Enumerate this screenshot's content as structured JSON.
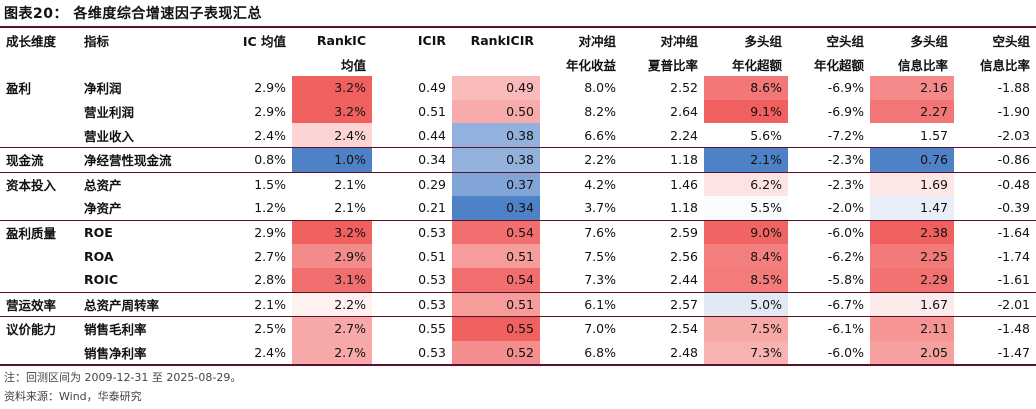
{
  "title": "图表20： 各维度综合增速因子表现汇总",
  "headers": [
    [
      "成长维度",
      ""
    ],
    [
      "指标",
      ""
    ],
    [
      "IC 均值",
      ""
    ],
    [
      "RankIC",
      "均值"
    ],
    [
      "ICIR",
      ""
    ],
    [
      "RankICIR",
      ""
    ],
    [
      "对冲组",
      "年化收益"
    ],
    [
      "对冲组",
      "夏普比率"
    ],
    [
      "多头组",
      "年化超额"
    ],
    [
      "空头组",
      "年化超额"
    ],
    [
      "多头组",
      "信息比率"
    ],
    [
      "空头组",
      "信息比率"
    ]
  ],
  "rows": [
    {
      "group": "盈利",
      "metric": "净利润",
      "ic": "2.9%",
      "rankic": "3.2%",
      "icir": "0.49",
      "rankicir": "0.49",
      "hedge_ret": "8.0%",
      "hedge_sharpe": "2.52",
      "long_excess": "8.6%",
      "short_excess": "-6.9%",
      "long_ir": "2.16",
      "short_ir": "-1.88"
    },
    {
      "group": "",
      "metric": "营业利润",
      "ic": "2.9%",
      "rankic": "3.2%",
      "icir": "0.51",
      "rankicir": "0.50",
      "hedge_ret": "8.2%",
      "hedge_sharpe": "2.64",
      "long_excess": "9.1%",
      "short_excess": "-6.9%",
      "long_ir": "2.27",
      "short_ir": "-1.90"
    },
    {
      "group": "",
      "metric": "营业收入",
      "ic": "2.4%",
      "rankic": "2.4%",
      "icir": "0.44",
      "rankicir": "0.38",
      "hedge_ret": "6.6%",
      "hedge_sharpe": "2.24",
      "long_excess": "5.6%",
      "short_excess": "-7.2%",
      "long_ir": "1.57",
      "short_ir": "-2.03"
    },
    {
      "group": "现金流",
      "metric": "净经营性现金流",
      "ic": "0.8%",
      "rankic": "1.0%",
      "icir": "0.34",
      "rankicir": "0.38",
      "hedge_ret": "2.2%",
      "hedge_sharpe": "1.18",
      "long_excess": "2.1%",
      "short_excess": "-2.3%",
      "long_ir": "0.76",
      "short_ir": "-0.86"
    },
    {
      "group": "资本投入",
      "metric": "总资产",
      "ic": "1.5%",
      "rankic": "2.1%",
      "icir": "0.29",
      "rankicir": "0.37",
      "hedge_ret": "4.2%",
      "hedge_sharpe": "1.46",
      "long_excess": "6.2%",
      "short_excess": "-2.3%",
      "long_ir": "1.69",
      "short_ir": "-0.48"
    },
    {
      "group": "",
      "metric": "净资产",
      "ic": "1.2%",
      "rankic": "2.1%",
      "icir": "0.21",
      "rankicir": "0.34",
      "hedge_ret": "3.7%",
      "hedge_sharpe": "1.18",
      "long_excess": "5.5%",
      "short_excess": "-2.0%",
      "long_ir": "1.47",
      "short_ir": "-0.39"
    },
    {
      "group": "盈利质量",
      "metric": "ROE",
      "ic": "2.9%",
      "rankic": "3.2%",
      "icir": "0.53",
      "rankicir": "0.54",
      "hedge_ret": "7.6%",
      "hedge_sharpe": "2.59",
      "long_excess": "9.0%",
      "short_excess": "-6.0%",
      "long_ir": "2.38",
      "short_ir": "-1.64"
    },
    {
      "group": "",
      "metric": "ROA",
      "ic": "2.7%",
      "rankic": "2.9%",
      "icir": "0.51",
      "rankicir": "0.51",
      "hedge_ret": "7.5%",
      "hedge_sharpe": "2.56",
      "long_excess": "8.4%",
      "short_excess": "-6.2%",
      "long_ir": "2.25",
      "short_ir": "-1.74"
    },
    {
      "group": "",
      "metric": "ROIC",
      "ic": "2.8%",
      "rankic": "3.1%",
      "icir": "0.53",
      "rankicir": "0.54",
      "hedge_ret": "7.3%",
      "hedge_sharpe": "2.44",
      "long_excess": "8.5%",
      "short_excess": "-5.8%",
      "long_ir": "2.29",
      "short_ir": "-1.61"
    },
    {
      "group": "营运效率",
      "metric": "总资产周转率",
      "ic": "2.1%",
      "rankic": "2.2%",
      "icir": "0.53",
      "rankicir": "0.51",
      "hedge_ret": "6.1%",
      "hedge_sharpe": "2.57",
      "long_excess": "5.0%",
      "short_excess": "-6.7%",
      "long_ir": "1.67",
      "short_ir": "-2.01"
    },
    {
      "group": "议价能力",
      "metric": "销售毛利率",
      "ic": "2.5%",
      "rankic": "2.7%",
      "icir": "0.55",
      "rankicir": "0.55",
      "hedge_ret": "7.0%",
      "hedge_sharpe": "2.54",
      "long_excess": "7.5%",
      "short_excess": "-6.1%",
      "long_ir": "2.11",
      "short_ir": "-1.48"
    },
    {
      "group": "",
      "metric": "销售净利率",
      "ic": "2.4%",
      "rankic": "2.7%",
      "icir": "0.53",
      "rankicir": "0.52",
      "hedge_ret": "6.8%",
      "hedge_sharpe": "2.48",
      "long_excess": "7.3%",
      "short_excess": "-6.0%",
      "long_ir": "2.05",
      "short_ir": "-1.47"
    }
  ],
  "heat_colors": {
    "high": "#f0605f",
    "mid": "#ffffff",
    "low": "#4f81c7"
  },
  "footnote": "注：回测区间为 2009-12-31 至 2025-08-29。",
  "source": "资料来源：Wind，华泰研究"
}
